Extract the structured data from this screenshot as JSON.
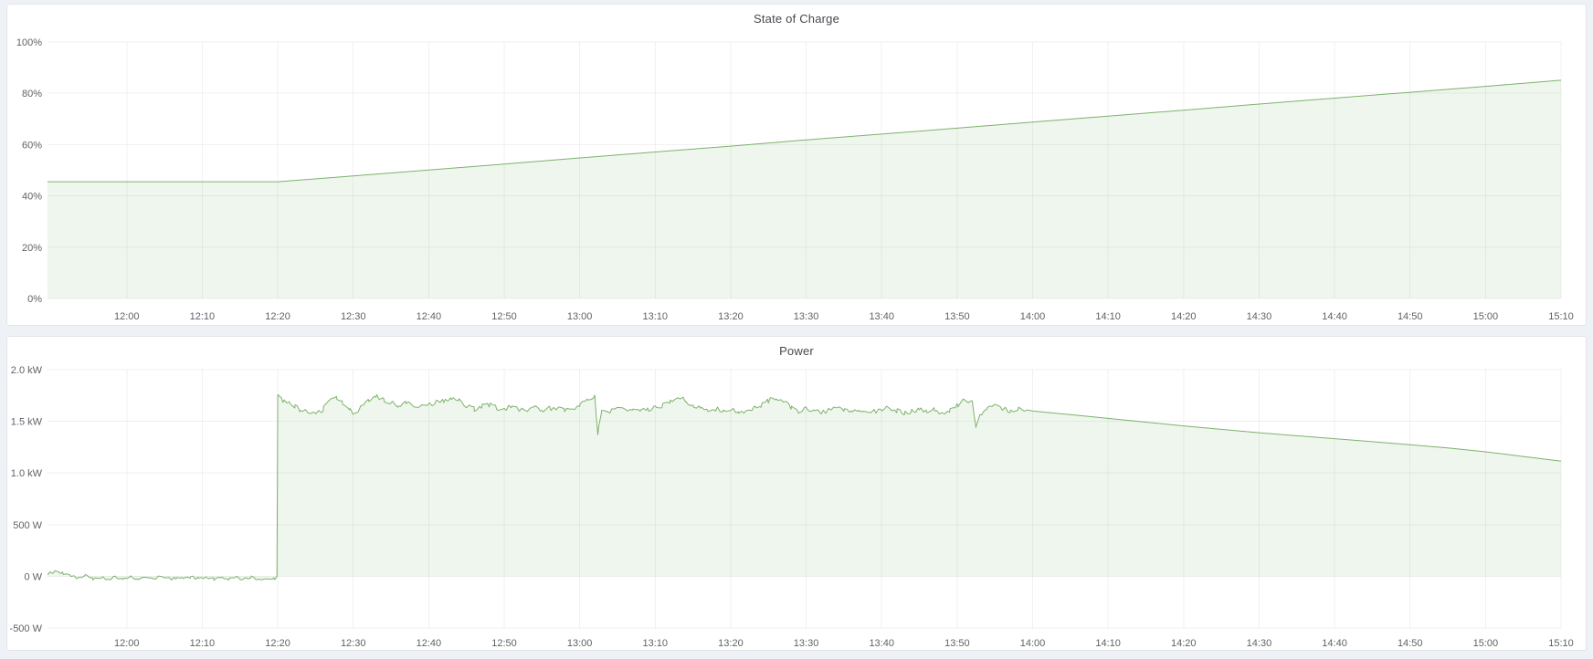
{
  "theme": {
    "page_bg": "#eef1f6",
    "panel_bg": "#ffffff",
    "panel_border": "#e3e5e8",
    "accent_green": "#7eb26d",
    "area_fill": "rgba(126,178,109,0.12)",
    "grid_color": "rgba(0,0,0,0.055)",
    "tick_color": "#5e6268",
    "title_color": "#45494e"
  },
  "chart_data": [
    {
      "type": "area",
      "title": "State of Charge",
      "xlabel": "",
      "ylabel": "",
      "unit": "%",
      "grid": true,
      "legend": "none",
      "ylim": [
        0,
        100
      ],
      "xlim_minutes": [
        -10.5,
        190
      ],
      "yticks": [
        {
          "v": 0,
          "label": "0%"
        },
        {
          "v": 20,
          "label": "20%"
        },
        {
          "v": 40,
          "label": "40%"
        },
        {
          "v": 60,
          "label": "60%"
        },
        {
          "v": 80,
          "label": "80%"
        },
        {
          "v": 100,
          "label": "100%"
        }
      ],
      "xticks": [
        {
          "t": 0,
          "label": "12:00"
        },
        {
          "t": 10,
          "label": "12:10"
        },
        {
          "t": 20,
          "label": "12:20"
        },
        {
          "t": 30,
          "label": "12:30"
        },
        {
          "t": 40,
          "label": "12:40"
        },
        {
          "t": 50,
          "label": "12:50"
        },
        {
          "t": 60,
          "label": "13:00"
        },
        {
          "t": 70,
          "label": "13:10"
        },
        {
          "t": 80,
          "label": "13:20"
        },
        {
          "t": 90,
          "label": "13:30"
        },
        {
          "t": 100,
          "label": "13:40"
        },
        {
          "t": 110,
          "label": "13:50"
        },
        {
          "t": 120,
          "label": "14:00"
        },
        {
          "t": 130,
          "label": "14:10"
        },
        {
          "t": 140,
          "label": "14:20"
        },
        {
          "t": 150,
          "label": "14:30"
        },
        {
          "t": 160,
          "label": "14:40"
        },
        {
          "t": 170,
          "label": "14:50"
        },
        {
          "t": 180,
          "label": "15:00"
        },
        {
          "t": 190,
          "label": "15:10"
        }
      ],
      "series": [
        {
          "name": "State of Charge",
          "color": "#7eb26d",
          "fill": "rgba(126,178,109,0.12)",
          "points": [
            [
              -10.5,
              45.5
            ],
            [
              0,
              45.5
            ],
            [
              10,
              45.5
            ],
            [
              20,
              45.5
            ],
            [
              30,
              47.8
            ],
            [
              40,
              50.1
            ],
            [
              50,
              52.4
            ],
            [
              60,
              54.8
            ],
            [
              70,
              57.1
            ],
            [
              80,
              59.4
            ],
            [
              90,
              61.8
            ],
            [
              100,
              64.1
            ],
            [
              110,
              66.4
            ],
            [
              120,
              68.8
            ],
            [
              130,
              71.1
            ],
            [
              140,
              73.4
            ],
            [
              150,
              75.8
            ],
            [
              160,
              78.1
            ],
            [
              170,
              80.4
            ],
            [
              180,
              82.7
            ],
            [
              190,
              85.1
            ]
          ]
        }
      ]
    },
    {
      "type": "area",
      "title": "Power",
      "xlabel": "",
      "ylabel": "",
      "unit": "W",
      "grid": true,
      "legend": "none",
      "ylim": [
        -500,
        2000
      ],
      "xlim_minutes": [
        -10.5,
        190
      ],
      "yticks": [
        {
          "v": -500,
          "label": "-500 W"
        },
        {
          "v": 0,
          "label": "0 W"
        },
        {
          "v": 500,
          "label": "500 W"
        },
        {
          "v": 1000,
          "label": "1.0 kW"
        },
        {
          "v": 1500,
          "label": "1.5 kW"
        },
        {
          "v": 2000,
          "label": "2.0 kW"
        }
      ],
      "xticks": [
        {
          "t": 0,
          "label": "12:00"
        },
        {
          "t": 10,
          "label": "12:10"
        },
        {
          "t": 20,
          "label": "12:20"
        },
        {
          "t": 30,
          "label": "12:30"
        },
        {
          "t": 40,
          "label": "12:40"
        },
        {
          "t": 50,
          "label": "12:50"
        },
        {
          "t": 60,
          "label": "13:00"
        },
        {
          "t": 70,
          "label": "13:10"
        },
        {
          "t": 80,
          "label": "13:20"
        },
        {
          "t": 90,
          "label": "13:30"
        },
        {
          "t": 100,
          "label": "13:40"
        },
        {
          "t": 110,
          "label": "13:50"
        },
        {
          "t": 120,
          "label": "14:00"
        },
        {
          "t": 130,
          "label": "14:10"
        },
        {
          "t": 140,
          "label": "14:20"
        },
        {
          "t": 150,
          "label": "14:30"
        },
        {
          "t": 160,
          "label": "14:40"
        },
        {
          "t": 170,
          "label": "14:50"
        },
        {
          "t": 180,
          "label": "15:00"
        },
        {
          "t": 190,
          "label": "15:10"
        }
      ],
      "series": [
        {
          "name": "Power",
          "color": "#7eb26d",
          "fill": "rgba(126,178,109,0.12)",
          "noise": {
            "seed": 9,
            "step": 0.35,
            "segments": [
              {
                "from": -10.5,
                "to": 19.9,
                "amp": 15
              },
              {
                "from": 20.5,
                "to": 119.5,
                "amp": 25
              }
            ]
          },
          "points": [
            [
              -10.5,
              25
            ],
            [
              -9.5,
              45
            ],
            [
              -8.5,
              30
            ],
            [
              -7.5,
              8
            ],
            [
              -6.5,
              -22
            ],
            [
              -5.5,
              6
            ],
            [
              -4.5,
              -26
            ],
            [
              -3.5,
              -8
            ],
            [
              -2.5,
              -30
            ],
            [
              -1.5,
              -4
            ],
            [
              -0.5,
              -24
            ],
            [
              0.5,
              -8
            ],
            [
              1.5,
              -28
            ],
            [
              2.5,
              -12
            ],
            [
              3.5,
              -24
            ],
            [
              4.5,
              -4
            ],
            [
              5.5,
              -26
            ],
            [
              6.5,
              -14
            ],
            [
              7.5,
              -30
            ],
            [
              8.5,
              -8
            ],
            [
              9.5,
              -24
            ],
            [
              10.5,
              -14
            ],
            [
              11.5,
              -26
            ],
            [
              12.5,
              -8
            ],
            [
              13.5,
              -28
            ],
            [
              14.5,
              -14
            ],
            [
              15.5,
              -24
            ],
            [
              16.5,
              -8
            ],
            [
              17.5,
              -26
            ],
            [
              18.5,
              -14
            ],
            [
              19.5,
              -24
            ],
            [
              19.9,
              -12
            ],
            [
              20,
              1758
            ],
            [
              20.7,
              1690
            ],
            [
              21.5,
              1666
            ],
            [
              22.3,
              1640
            ],
            [
              23,
              1612
            ],
            [
              24,
              1585
            ],
            [
              25,
              1568
            ],
            [
              26,
              1620
            ],
            [
              27,
              1698
            ],
            [
              27.8,
              1722
            ],
            [
              28.6,
              1680
            ],
            [
              29.5,
              1610
            ],
            [
              30.3,
              1580
            ],
            [
              31,
              1640
            ],
            [
              32,
              1706
            ],
            [
              33,
              1742
            ],
            [
              34,
              1716
            ],
            [
              35,
              1678
            ],
            [
              36,
              1650
            ],
            [
              37,
              1672
            ],
            [
              38,
              1660
            ],
            [
              39,
              1648
            ],
            [
              40,
              1662
            ],
            [
              41,
              1680
            ],
            [
              42,
              1704
            ],
            [
              43,
              1722
            ],
            [
              44,
              1698
            ],
            [
              45,
              1645
            ],
            [
              46,
              1618
            ],
            [
              47,
              1645
            ],
            [
              48,
              1662
            ],
            [
              49,
              1632
            ],
            [
              50,
              1612
            ],
            [
              51,
              1642
            ],
            [
              52,
              1620
            ],
            [
              53,
              1602
            ],
            [
              54,
              1632
            ],
            [
              55,
              1612
            ],
            [
              56,
              1632
            ],
            [
              57,
              1618
            ],
            [
              58,
              1602
            ],
            [
              59,
              1630
            ],
            [
              60,
              1655
            ],
            [
              61,
              1702
            ],
            [
              62,
              1745
            ],
            [
              62.4,
              1375
            ],
            [
              62.9,
              1612
            ],
            [
              64,
              1602
            ],
            [
              65,
              1632
            ],
            [
              66,
              1612
            ],
            [
              67,
              1622
            ],
            [
              68,
              1592
            ],
            [
              69,
              1612
            ],
            [
              70,
              1632
            ],
            [
              71,
              1655
            ],
            [
              72,
              1702
            ],
            [
              73,
              1728
            ],
            [
              74,
              1700
            ],
            [
              75,
              1652
            ],
            [
              76,
              1622
            ],
            [
              77,
              1602
            ],
            [
              78,
              1622
            ],
            [
              79,
              1592
            ],
            [
              80,
              1612
            ],
            [
              81,
              1582
            ],
            [
              82,
              1602
            ],
            [
              83,
              1625
            ],
            [
              84,
              1655
            ],
            [
              85,
              1700
            ],
            [
              86,
              1718
            ],
            [
              87,
              1688
            ],
            [
              88,
              1640
            ],
            [
              89,
              1602
            ],
            [
              90,
              1622
            ],
            [
              91,
              1600
            ],
            [
              92,
              1582
            ],
            [
              93,
              1602
            ],
            [
              94,
              1622
            ],
            [
              95,
              1602
            ],
            [
              96,
              1592
            ],
            [
              97,
              1612
            ],
            [
              98,
              1600
            ],
            [
              99,
              1592
            ],
            [
              100,
              1612
            ],
            [
              101,
              1632
            ],
            [
              102,
              1602
            ],
            [
              103,
              1582
            ],
            [
              104,
              1602
            ],
            [
              105,
              1622
            ],
            [
              106,
              1592
            ],
            [
              107,
              1612
            ],
            [
              108,
              1582
            ],
            [
              109,
              1605
            ],
            [
              110,
              1652
            ],
            [
              111,
              1700
            ],
            [
              112,
              1680
            ],
            [
              112.5,
              1448
            ],
            [
              113,
              1562
            ],
            [
              114,
              1622
            ],
            [
              115,
              1645
            ],
            [
              116,
              1622
            ],
            [
              117,
              1602
            ],
            [
              118,
              1612
            ],
            [
              119,
              1618
            ],
            [
              120,
              1600
            ],
            [
              125,
              1565
            ],
            [
              130,
              1528
            ],
            [
              135,
              1492
            ],
            [
              140,
              1456
            ],
            [
              145,
              1422
            ],
            [
              150,
              1390
            ],
            [
              155,
              1360
            ],
            [
              160,
              1332
            ],
            [
              165,
              1303
            ],
            [
              170,
              1273
            ],
            [
              175,
              1243
            ],
            [
              180,
              1205
            ],
            [
              185,
              1160
            ],
            [
              190,
              1115
            ]
          ]
        }
      ]
    }
  ]
}
